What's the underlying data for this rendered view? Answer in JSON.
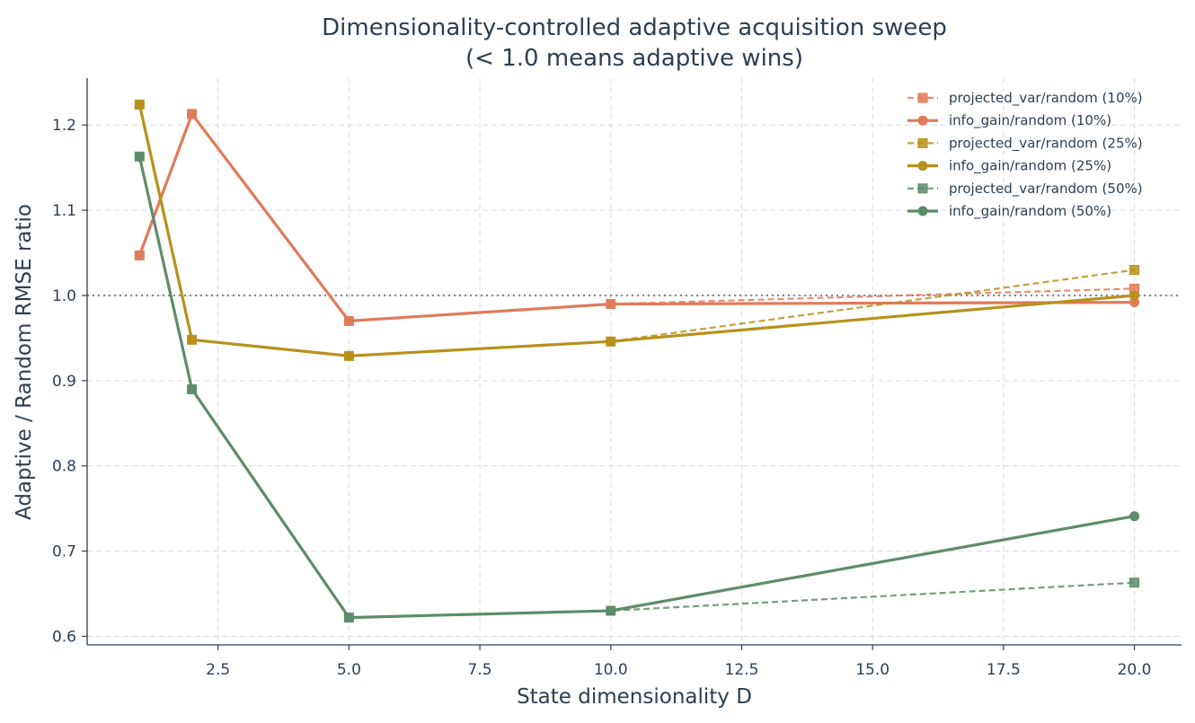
{
  "chart_data": {
    "type": "line",
    "title_line1": "Dimensionality-controlled adaptive acquisition sweep",
    "title_line2": "(< 1.0 means adaptive wins)",
    "xlabel": "State dimensionality D",
    "ylabel": "Adaptive / Random RMSE ratio",
    "xlim": [
      0.0,
      20.9
    ],
    "ylim": [
      0.59,
      1.255
    ],
    "xticks": [
      2.5,
      5.0,
      7.5,
      10.0,
      12.5,
      15.0,
      17.5,
      20.0
    ],
    "xtick_labels": [
      "2.5",
      "5.0",
      "7.5",
      "10.0",
      "12.5",
      "15.0",
      "17.5",
      "20.0"
    ],
    "yticks": [
      0.6,
      0.7,
      0.8,
      0.9,
      1.0,
      1.1,
      1.2
    ],
    "ytick_labels": [
      "0.6",
      "0.7",
      "0.8",
      "0.9",
      "1.0",
      "1.1",
      "1.2"
    ],
    "grid": true,
    "legend_position": "top-right",
    "reference_line": {
      "y": 1.0,
      "style": "dotted",
      "color": "#7f8790"
    },
    "x": [
      1,
      2,
      5,
      10,
      20
    ],
    "series": [
      {
        "name": "projected_var/random (10%)",
        "values": [
          1.047,
          1.213,
          0.97,
          0.99,
          1.008
        ],
        "color": "#e07b5a",
        "dash": true,
        "marker": "square"
      },
      {
        "name": "info_gain/random (10%)",
        "values": [
          1.047,
          1.213,
          0.97,
          0.99,
          0.992
        ],
        "color": "#e07b5a",
        "dash": false,
        "marker": "circle"
      },
      {
        "name": "projected_var/random (25%)",
        "values": [
          1.224,
          0.948,
          0.929,
          0.946,
          1.03
        ],
        "color": "#b8901c",
        "dash": true,
        "marker": "square"
      },
      {
        "name": "info_gain/random (25%)",
        "values": [
          1.224,
          0.948,
          0.929,
          0.946,
          1.0
        ],
        "color": "#b8901c",
        "dash": false,
        "marker": "circle"
      },
      {
        "name": "projected_var/random (50%)",
        "values": [
          1.163,
          0.89,
          0.622,
          0.63,
          0.663
        ],
        "color": "#5e8c6a",
        "dash": true,
        "marker": "square"
      },
      {
        "name": "info_gain/random (50%)",
        "values": [
          1.163,
          0.89,
          0.622,
          0.63,
          0.741
        ],
        "color": "#5e8c6a",
        "dash": false,
        "marker": "circle"
      }
    ]
  }
}
